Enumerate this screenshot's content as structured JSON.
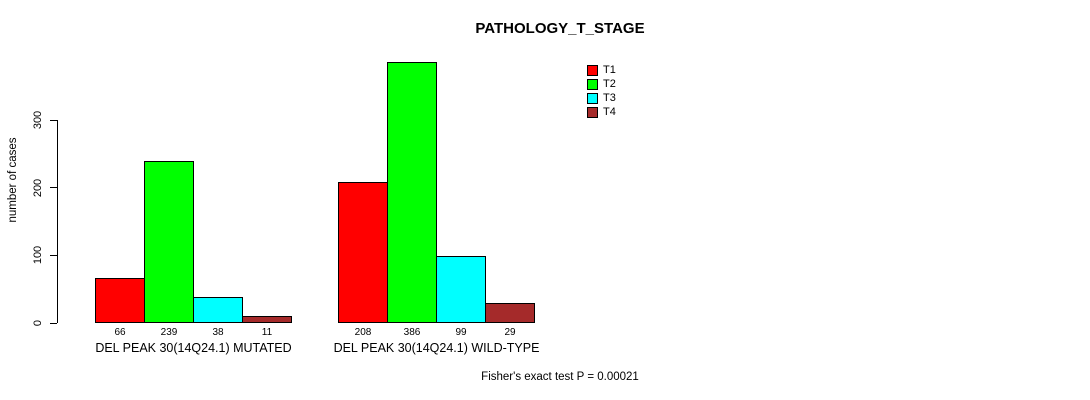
{
  "chart_data": {
    "type": "bar",
    "title": "PATHOLOGY_T_STAGE",
    "ylabel": "number of cases",
    "ylim": [
      0,
      300
    ],
    "yticks": [
      0,
      100,
      200,
      300
    ],
    "grid": false,
    "legend_position": "top-right",
    "series": [
      {
        "name": "T1",
        "color": "#FF0000"
      },
      {
        "name": "T2",
        "color": "#00FF00"
      },
      {
        "name": "T3",
        "color": "#00FFFF"
      },
      {
        "name": "T4",
        "color": "#A52A2A"
      }
    ],
    "groups": [
      {
        "label": "DEL PEAK 30(14Q24.1) MUTATED",
        "values": [
          66,
          239,
          38,
          11
        ]
      },
      {
        "label": "DEL PEAK 30(14Q24.1) WILD-TYPE",
        "values": [
          208,
          386,
          99,
          29
        ]
      }
    ],
    "annotation": "Fisher's exact test P = 0.00021"
  }
}
